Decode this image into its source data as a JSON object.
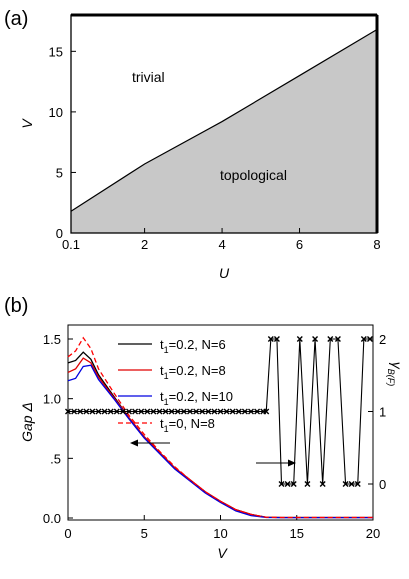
{
  "chart_data": [
    {
      "panel": "(a)",
      "type": "area",
      "xlabel": "U",
      "ylabel": "V",
      "xlim": [
        0.1,
        8
      ],
      "ylim": [
        0,
        18
      ],
      "x_ticks": [
        "0.1",
        "2",
        "4",
        "6",
        "8"
      ],
      "y_ticks": [
        "0",
        "5",
        "10",
        "15"
      ],
      "regions": {
        "upper": "trivial",
        "lower": "topological"
      },
      "boundary": {
        "x": [
          0.1,
          2,
          4,
          6,
          8
        ],
        "y": [
          1.8,
          5.7,
          9.2,
          13.0,
          16.8
        ]
      },
      "colors": {
        "shade": "#c8c8c8",
        "line": "#000000"
      }
    },
    {
      "panel": "(b)",
      "type": "line",
      "xlabel": "V",
      "ylabel_left": "Gap Δ",
      "ylabel_right": "γ",
      "ylabel_right_sub": "B(F)",
      "xlim": [
        0,
        20
      ],
      "ylim_left": [
        0,
        1.5
      ],
      "ylim_right": [
        -0.5,
        2.3
      ],
      "x_ticks": [
        "0",
        "5",
        "10",
        "15",
        "20"
      ],
      "y_ticks_left": [
        "0.0",
        ".5",
        "1.0",
        "1.5"
      ],
      "y_ticks_right": [
        "0",
        "1",
        "2"
      ],
      "series": [
        {
          "name": "t1=0.2, N=6",
          "label_main": "t",
          "label_sub": "1",
          "label_rest": "=0.2, N=6",
          "color": "#000000",
          "dash": false,
          "x": [
            0,
            0.5,
            1,
            1.5,
            2,
            3,
            4,
            5,
            6,
            7,
            8,
            9,
            10,
            11,
            12,
            13,
            14,
            15,
            17,
            20
          ],
          "y": [
            1.3,
            1.32,
            1.39,
            1.33,
            1.2,
            1.02,
            0.84,
            0.68,
            0.55,
            0.42,
            0.32,
            0.22,
            0.14,
            0.07,
            0.03,
            0.006,
            0.004,
            0.004,
            0.004,
            0.004
          ]
        },
        {
          "name": "t1=0.2, N=8",
          "label_main": "t",
          "label_sub": "1",
          "label_rest": "=0.2, N=8",
          "color": "#e00000",
          "dash": false,
          "x": [
            0,
            0.5,
            1,
            1.5,
            2,
            3,
            4,
            5,
            6,
            7,
            8,
            9,
            10,
            11,
            12,
            13,
            14,
            15,
            17,
            20
          ],
          "y": [
            1.22,
            1.25,
            1.34,
            1.3,
            1.18,
            1.01,
            0.84,
            0.68,
            0.55,
            0.42,
            0.32,
            0.22,
            0.14,
            0.07,
            0.03,
            0.006,
            0.004,
            0.004,
            0.004,
            0.004
          ]
        },
        {
          "name": "t1=0.2, N=10",
          "label_main": "t",
          "label_sub": "1",
          "label_rest": "=0.2, N=10",
          "color": "#0000e0",
          "dash": false,
          "x": [
            0,
            0.5,
            1,
            1.5,
            2,
            3,
            4,
            5,
            6,
            7,
            8,
            9,
            10,
            11,
            12,
            13,
            14,
            15,
            17,
            20
          ],
          "y": [
            1.15,
            1.17,
            1.27,
            1.28,
            1.16,
            1.0,
            0.83,
            0.67,
            0.54,
            0.41,
            0.31,
            0.21,
            0.13,
            0.06,
            0.02,
            0.004,
            0.003,
            0.003,
            0.003,
            0.003
          ]
        },
        {
          "name": "t1=0,   N=8",
          "label_main": "t",
          "label_sub": "1",
          "label_rest": "=0,    N=8",
          "color": "#ff0000",
          "dash": true,
          "x": [
            0,
            0.5,
            1,
            1.5,
            2,
            3,
            4,
            5,
            6,
            7,
            8,
            9,
            10,
            11,
            12,
            13,
            14,
            15,
            17,
            20
          ],
          "y": [
            1.35,
            1.4,
            1.51,
            1.42,
            1.25,
            1.05,
            0.86,
            0.7,
            0.56,
            0.43,
            0.32,
            0.22,
            0.14,
            0.07,
            0.03,
            0.006,
            0.004,
            0.004,
            0.004,
            0.004
          ]
        }
      ],
      "berry_phase": {
        "axis": "right",
        "color": "#000000",
        "x": [
          0,
          0.4,
          0.8,
          1.2,
          1.6,
          2.0,
          2.4,
          2.8,
          3.2,
          3.6,
          4.0,
          4.4,
          4.8,
          5.2,
          5.6,
          6.0,
          6.4,
          6.8,
          7.2,
          7.6,
          8.0,
          8.4,
          8.8,
          9.2,
          9.6,
          10.0,
          10.4,
          10.8,
          11.2,
          11.6,
          12.0,
          12.4,
          12.8,
          13.0,
          13.3,
          13.7,
          14.0,
          14.4,
          14.8,
          15.2,
          15.7,
          16.2,
          16.7,
          17.2,
          17.7,
          18.2,
          18.6,
          19.0,
          19.4,
          19.8
        ],
        "y": [
          1,
          1,
          1,
          1,
          1,
          1,
          1,
          1,
          1,
          1,
          1,
          1,
          1,
          1,
          1,
          1,
          1,
          1,
          1,
          1,
          1,
          1,
          1,
          1,
          1,
          1,
          1,
          1,
          1,
          1,
          1,
          1,
          1,
          1,
          2,
          2,
          0,
          0,
          0,
          2,
          0,
          2,
          0,
          2,
          2,
          0,
          0,
          0,
          2,
          2
        ]
      },
      "arrows": [
        {
          "direction": "left",
          "points_to": "left axis"
        },
        {
          "direction": "right",
          "points_to": "right axis"
        }
      ]
    }
  ]
}
